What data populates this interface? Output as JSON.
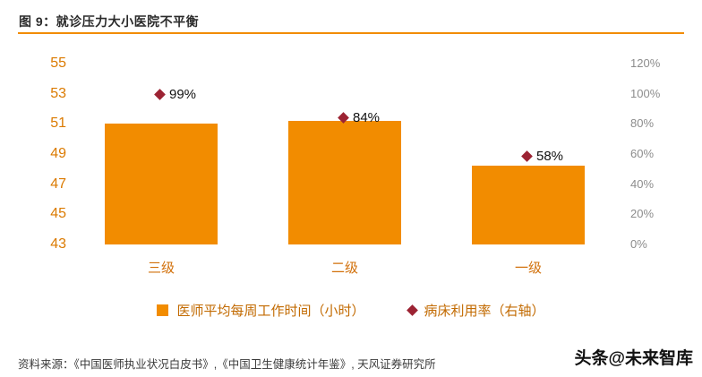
{
  "chart_data": {
    "type": "bar",
    "title": "图 9：就诊压力大小医院不平衡",
    "categories": [
      "三级",
      "二级",
      "一级"
    ],
    "series": [
      {
        "name": "医师平均每周工作时间（小时）",
        "chart": "bar",
        "axis": "left",
        "values": [
          51,
          51.2,
          48.2
        ]
      },
      {
        "name": "病床利用率（右轴）",
        "chart": "scatter",
        "axis": "right",
        "values": [
          99,
          84,
          58
        ],
        "point_labels": [
          "99%",
          "84%",
          "58%"
        ]
      }
    ],
    "left_axis": {
      "min": 43,
      "max": 55,
      "tick_values": [
        55,
        53,
        51,
        49,
        47,
        45,
        43
      ]
    },
    "right_axis": {
      "min": 0,
      "max": 120,
      "tick_values": [
        120,
        100,
        80,
        60,
        40,
        20,
        0
      ],
      "suffix": "%"
    },
    "grid": false,
    "legend_position": "bottom",
    "colors": {
      "bar": "#F28C00",
      "marker": "#9C2333",
      "accent_rule": "#F28C00",
      "left_axis_text": "#DB7A00",
      "right_axis_text": "#8C8C8C"
    }
  },
  "footer": {
    "source": "资料来源：《中国医师执业状况白皮书》,《中国卫生健康统计年鉴》, 天风证券研究所",
    "watermark": "头条@未来智库"
  }
}
